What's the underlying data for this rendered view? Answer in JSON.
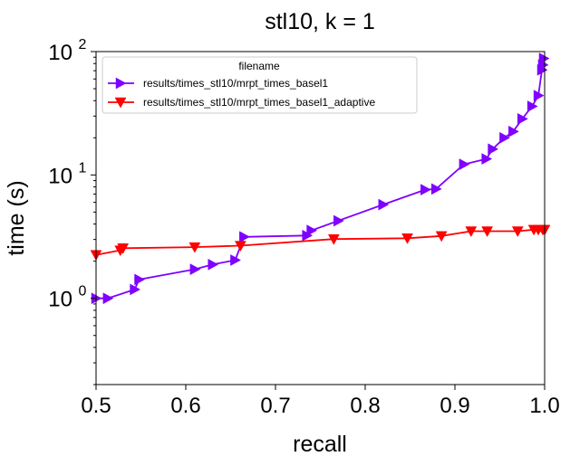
{
  "chart_data": {
    "type": "line",
    "title": "stl10, k = 1",
    "xlabel": "recall",
    "ylabel": "time (s)",
    "xlim": [
      0.5,
      1.0
    ],
    "ylim": [
      0.2,
      100
    ],
    "yscale": "log",
    "xticks": [
      "0.5",
      "0.6",
      "0.7",
      "0.8",
      "0.9",
      "1.0"
    ],
    "yticks": [
      {
        "base": "10",
        "exp": "0"
      },
      {
        "base": "10",
        "exp": "1"
      },
      {
        "base": "10",
        "exp": "2"
      }
    ],
    "grid": false,
    "legend": {
      "title": "filename",
      "placement": "top-left"
    },
    "series": [
      {
        "name": "results/times_stl10/mrpt_times_basel1",
        "color": "#7f00ff",
        "marker": "triangle-right",
        "x": [
          0.5,
          0.513,
          0.543,
          0.548,
          0.61,
          0.63,
          0.655,
          0.665,
          0.735,
          0.74,
          0.77,
          0.82,
          0.867,
          0.879,
          0.91,
          0.935,
          0.942,
          0.955,
          0.965,
          0.975,
          0.986,
          0.993,
          0.997,
          0.998,
          0.999
        ],
        "y": [
          1.0,
          1.0,
          1.18,
          1.42,
          1.72,
          1.88,
          2.04,
          3.15,
          3.23,
          3.55,
          4.25,
          5.75,
          7.6,
          7.7,
          12.2,
          13.5,
          16.2,
          20.0,
          22.5,
          28.5,
          36.0,
          44.0,
          71.0,
          78.0,
          88.0
        ]
      },
      {
        "name": "results/times_stl10/mrpt_times_basel1_adaptive",
        "color": "#ff0000",
        "marker": "triangle-down",
        "x": [
          0.5,
          0.527,
          0.53,
          0.61,
          0.661,
          0.765,
          0.847,
          0.885,
          0.918,
          0.936,
          0.97,
          0.988,
          0.993,
          0.998,
          1.0
        ],
        "y": [
          2.25,
          2.45,
          2.55,
          2.6,
          2.67,
          3.02,
          3.07,
          3.2,
          3.5,
          3.5,
          3.5,
          3.6,
          3.6,
          3.6,
          3.6
        ]
      }
    ]
  }
}
